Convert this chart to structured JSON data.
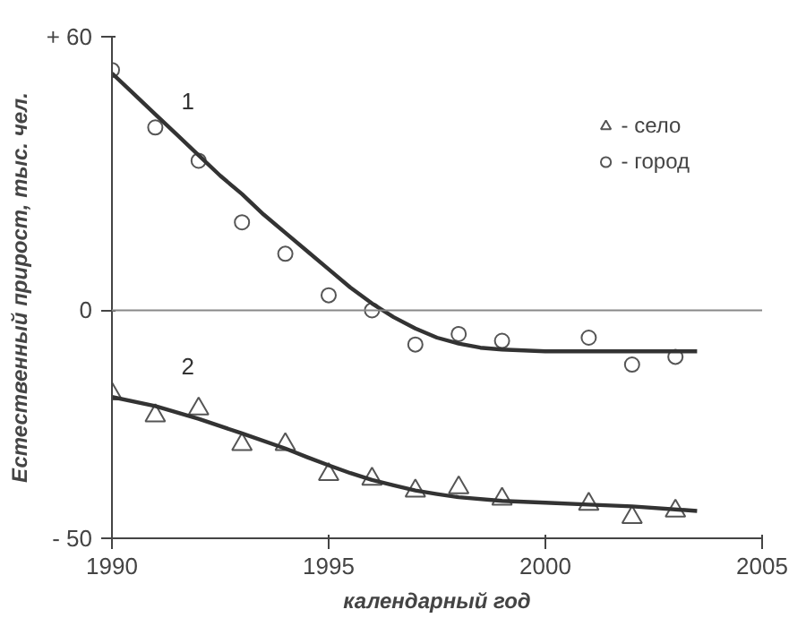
{
  "chart_data": {
    "type": "scatter",
    "xlabel": "календарный год",
    "ylabel": "Естественный прирост, тыс. чел.",
    "xlim": [
      1990,
      2005
    ],
    "ylim": [
      -50,
      60
    ],
    "xticks": [
      1990,
      1995,
      2000,
      2005
    ],
    "yticks": [
      {
        "value": -50,
        "label": "- 50"
      },
      0,
      {
        "value": 60,
        "label": "+ 60"
      }
    ],
    "grid": false,
    "legend": "top right",
    "ref_lines": [
      {
        "axis": "y",
        "value": 0,
        "color": "#888888"
      }
    ],
    "annotations": [
      {
        "text": "1",
        "x": 1992,
        "y": 34
      },
      {
        "text": "2",
        "x": 1992,
        "y": -24
      }
    ],
    "series": [
      {
        "name": "- село",
        "marker": "triangle",
        "color": "#555555",
        "x": [
          1990,
          1991,
          1992,
          1993,
          1994,
          1995,
          1996,
          1997,
          1998,
          1999,
          2001,
          2002,
          2003
        ],
        "values": [
          -18.3,
          -23.1,
          -21.6,
          -29.4,
          -29.4,
          -36,
          -37,
          -39.6,
          -38.9,
          -41.4,
          -42.5,
          -45.4,
          -44
        ]
      },
      {
        "name": "- город",
        "marker": "circle",
        "color": "#555555",
        "x": [
          1990,
          1991,
          1992,
          1993,
          1994,
          1995,
          1996,
          1997,
          1998,
          1999,
          2001,
          2002,
          2003
        ],
        "values": [
          52.7,
          40.1,
          32.8,
          19.3,
          12.4,
          3.3,
          0,
          -7.5,
          -5.2,
          -6.7,
          -6,
          -11.9,
          -10.2
        ]
      },
      {
        "type": "line",
        "marker": "none",
        "color": "#333333",
        "x": [
          1990,
          1990.5,
          1991,
          1991.5,
          1992,
          1992.5,
          1993,
          1993.5,
          1994,
          1994.5,
          1995,
          1995.5,
          1996,
          1996.5,
          1997,
          1997.5,
          1998,
          1998.5,
          1999,
          2000,
          2001,
          2002,
          2003.5
        ],
        "values": [
          52,
          47.5,
          43,
          38.5,
          34,
          29.5,
          25.5,
          21,
          17,
          13,
          9,
          5,
          1.5,
          -1.5,
          -4,
          -6,
          -7.3,
          -8.2,
          -8.6,
          -9,
          -9,
          -9,
          -9
        ]
      },
      {
        "type": "line",
        "marker": "none",
        "color": "#333333",
        "x": [
          1990,
          1991,
          1992,
          1993,
          1994,
          1994.5,
          1995,
          1995.5,
          1996,
          1996.5,
          1997,
          1997.5,
          1998,
          1999,
          2000,
          2001,
          2002,
          2003.5
        ],
        "values": [
          -19,
          -21,
          -23.8,
          -27,
          -30.3,
          -32.2,
          -34,
          -35.7,
          -37.2,
          -38.4,
          -39.5,
          -40.3,
          -41,
          -41.8,
          -42.2,
          -42.6,
          -43,
          -44
        ]
      }
    ]
  }
}
